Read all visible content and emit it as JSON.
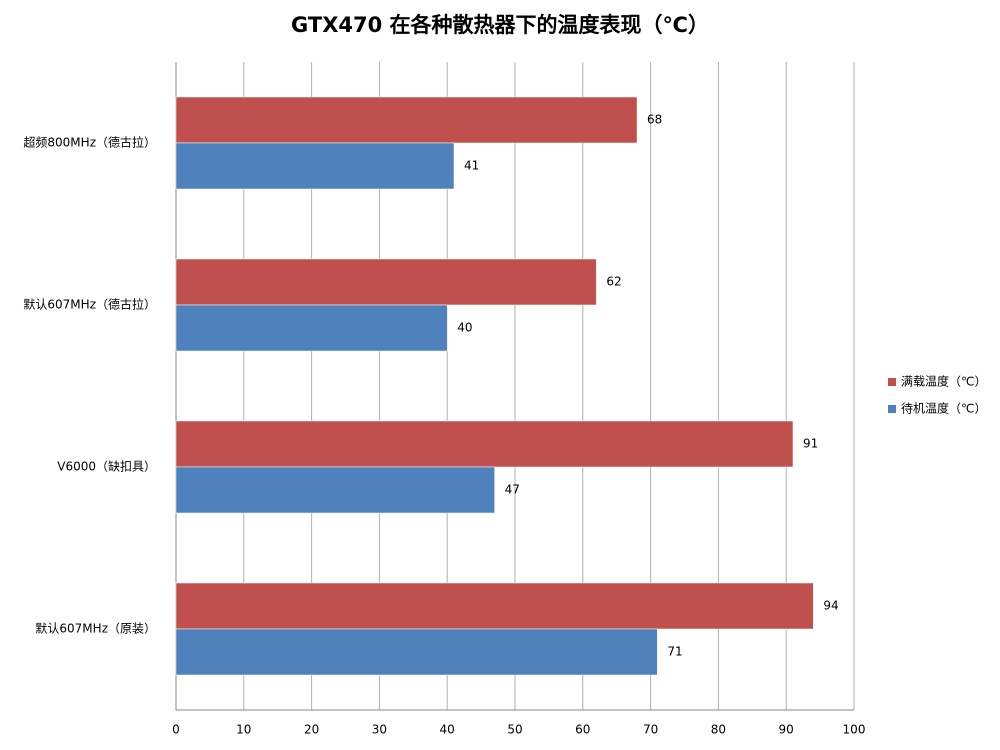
{
  "chart_data": {
    "type": "bar",
    "orientation": "horizontal",
    "title": "GTX470 在各种散热器下的温度表现（℃）",
    "categories": [
      "超频800MHz（德古拉）",
      "默认607MHz（德古拉）",
      "V6000（缺扣具）",
      "默认607MHz（原装）"
    ],
    "series": [
      {
        "name": "满载温度（℃）",
        "color": "#c0504d",
        "values": [
          68,
          62,
          91,
          94
        ]
      },
      {
        "name": "待机温度（℃）",
        "color": "#4f81bd",
        "values": [
          41,
          40,
          47,
          71
        ]
      }
    ],
    "xlim": [
      0,
      100
    ],
    "xticks": [
      0,
      10,
      20,
      30,
      40,
      50,
      60,
      70,
      80,
      90,
      100
    ],
    "grid": true,
    "legend": "right"
  }
}
